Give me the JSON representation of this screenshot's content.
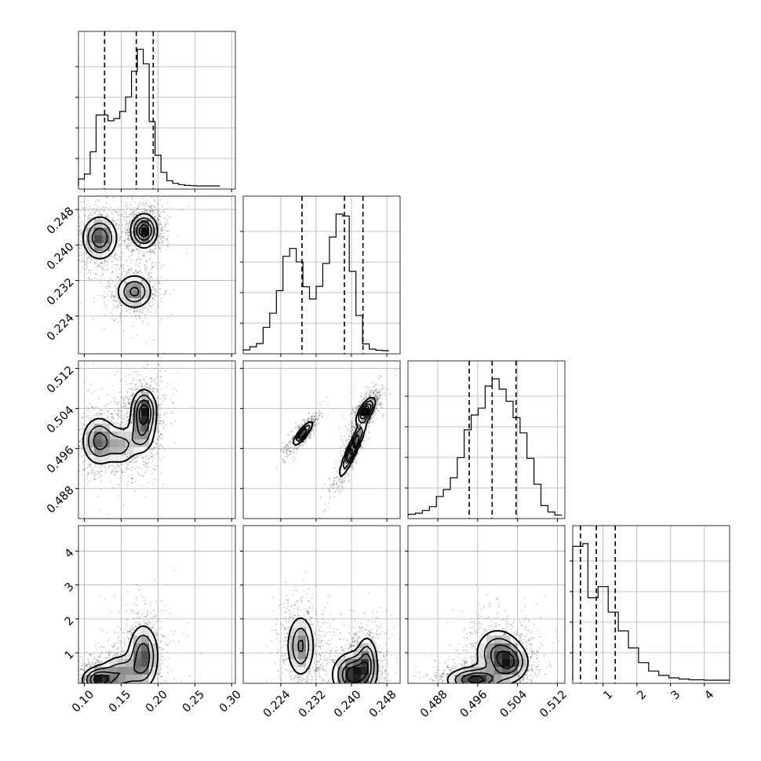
{
  "chart_data": {
    "type": "corner",
    "title": "",
    "params": [
      {
        "range": [
          0.092,
          0.305
        ],
        "ticks": [
          0.1,
          0.15,
          0.2,
          0.25,
          0.3
        ],
        "tick_labels": [
          "0.10",
          "0.15",
          "0.20",
          "0.25",
          "0.30"
        ],
        "quantiles": [
          0.1275,
          0.1705,
          0.1935
        ],
        "hist": {
          "bins": [
            0.092,
            0.1,
            0.108,
            0.116,
            0.124,
            0.132,
            0.14,
            0.148,
            0.156,
            0.164,
            0.172,
            0.18,
            0.188,
            0.196,
            0.204,
            0.212,
            0.22,
            0.228,
            0.236,
            0.244,
            0.252,
            0.26,
            0.268,
            0.276,
            0.284
          ],
          "counts": [
            1.6,
            2.7,
            7.8,
            16.2,
            16.2,
            14.9,
            15.4,
            17.0,
            20.3,
            26.2,
            31.2,
            27.9,
            14.7,
            7.0,
            3.1,
            1.2,
            0.6,
            0.3,
            0.1,
            0.05,
            0,
            0,
            0,
            0
          ]
        }
      },
      {
        "range": [
          0.2155,
          0.251
        ],
        "ticks": [
          0.224,
          0.232,
          0.24,
          0.248
        ],
        "tick_labels": [
          "0.224",
          "0.232",
          "0.240",
          "0.248"
        ],
        "quantiles": [
          0.2288,
          0.2384,
          0.2426
        ],
        "hist": {
          "bins": [
            0.2155,
            0.217,
            0.2185,
            0.22,
            0.2215,
            0.223,
            0.2245,
            0.226,
            0.2275,
            0.229,
            0.2305,
            0.232,
            0.2335,
            0.235,
            0.2365,
            0.238,
            0.2395,
            0.241,
            0.2425,
            0.244,
            0.2455,
            0.247,
            0.2485
          ],
          "counts": [
            0.2,
            1,
            1.8,
            5.9,
            9.5,
            15.2,
            23.9,
            25.9,
            22.5,
            16.2,
            13.1,
            16.3,
            22.1,
            28.8,
            34.6,
            34.1,
            20.1,
            8.9,
            1.7,
            0.4,
            0.1,
            0
          ]
        }
      },
      {
        "range": [
          0.482,
          0.5135
        ],
        "ticks": [
          0.488,
          0.496,
          0.504,
          0.512
        ],
        "tick_labels": [
          "0.488",
          "0.496",
          "0.504",
          "0.512"
        ],
        "quantiles": [
          0.4943,
          0.4989,
          0.5037
        ],
        "hist": {
          "bins": [
            0.4821,
            0.4835,
            0.4849,
            0.4863,
            0.4877,
            0.4891,
            0.4905,
            0.4919,
            0.4933,
            0.4947,
            0.4961,
            0.4975,
            0.4989,
            0.5003,
            0.5017,
            0.5031,
            0.5045,
            0.5059,
            0.5073,
            0.5087,
            0.5101,
            0.5115,
            0.5129
          ],
          "counts": [
            0.3,
            0.6,
            1.3,
            2.3,
            5.0,
            6.8,
            9.9,
            15.2,
            22.5,
            26.4,
            28.2,
            34.0,
            35.9,
            33.2,
            30.0,
            25.7,
            21.7,
            15.0,
            8.2,
            2.6,
            0.9,
            0.1
          ]
        }
      },
      {
        "range": [
          0.1,
          4.75
        ],
        "ticks": [
          1,
          2,
          3,
          4
        ],
        "tick_labels": [
          "1",
          "2",
          "3",
          "4"
        ],
        "quantiles": [
          0.33,
          0.8,
          1.36
        ],
        "hist": {
          "bins": [
            0.1,
            0.25,
            0.4,
            0.55,
            0.7,
            0.85,
            1.0,
            1.15,
            1.3,
            1.45,
            1.6,
            1.75,
            1.9,
            2.05,
            2.2,
            2.35,
            2.5,
            2.65,
            2.8,
            2.95,
            3.1,
            3.25,
            3.4,
            3.55,
            3.7,
            3.85,
            4.0,
            4.15,
            4.3,
            4.45,
            4.6,
            4.75
          ],
          "counts": [
            33.6,
            33.6,
            34.3,
            20.7,
            20.7,
            23.5,
            23.5,
            17.1,
            17.1,
            12.4,
            12.4,
            8.1,
            8.1,
            4.4,
            4.4,
            2.3,
            2.3,
            1.2,
            1.2,
            0.6,
            0.6,
            0.3,
            0.3,
            0.1,
            0.1,
            0.1,
            0,
            0,
            0,
            0,
            0
          ]
        }
      }
    ],
    "blobs": [
      {
        "pair": [
          0,
          1
        ],
        "cx": 0.121,
        "cy": 0.2416,
        "sx": 0.0125,
        "sy": 0.0026,
        "w": 1.0
      },
      {
        "pair": [
          0,
          1
        ],
        "cx": 0.181,
        "cy": 0.2432,
        "sx": 0.0095,
        "sy": 0.002,
        "w": 1.25
      },
      {
        "pair": [
          0,
          1
        ],
        "cx": 0.168,
        "cy": 0.2295,
        "sx": 0.013,
        "sy": 0.0021,
        "w": 0.8
      },
      {
        "pair": [
          0,
          2
        ],
        "cx": 0.12,
        "cy": 0.4975,
        "sx": 0.0125,
        "sy": 0.0026,
        "w": 1.0
      },
      {
        "pair": [
          0,
          2
        ],
        "cx": 0.15,
        "cy": 0.4965,
        "sx": 0.012,
        "sy": 0.0022,
        "w": 0.6
      },
      {
        "pair": [
          0,
          2
        ],
        "cx": 0.181,
        "cy": 0.5035,
        "sx": 0.009,
        "sy": 0.0023,
        "w": 1.3
      },
      {
        "pair": [
          0,
          2
        ],
        "cx": 0.178,
        "cy": 0.499,
        "sx": 0.01,
        "sy": 0.0024,
        "w": 0.7
      },
      {
        "pair": [
          1,
          2
        ],
        "cx": 0.229,
        "cy": 0.499,
        "sx": 0.0012,
        "sy": 0.0013,
        "rho": 0.85,
        "w": 0.9
      },
      {
        "pair": [
          1,
          2
        ],
        "cx": 0.2403,
        "cy": 0.496,
        "sx": 0.0016,
        "sy": 0.003,
        "rho": 0.92,
        "w": 1.0
      },
      {
        "pair": [
          1,
          2
        ],
        "cx": 0.2432,
        "cy": 0.5035,
        "sx": 0.0011,
        "sy": 0.0014,
        "rho": 0.7,
        "w": 1.1
      },
      {
        "pair": [
          0,
          3
        ],
        "cx": 0.12,
        "cy": 0.2,
        "sx": 0.012,
        "sy": 0.2,
        "w": 1.2
      },
      {
        "pair": [
          0,
          3
        ],
        "cx": 0.15,
        "cy": 0.4,
        "sx": 0.016,
        "sy": 0.3,
        "w": 0.7
      },
      {
        "pair": [
          0,
          3
        ],
        "cx": 0.18,
        "cy": 0.9,
        "sx": 0.011,
        "sy": 0.5,
        "w": 1.0
      },
      {
        "pair": [
          1,
          3
        ],
        "cx": 0.2285,
        "cy": 1.2,
        "sx": 0.0017,
        "sy": 0.5,
        "w": 0.7
      },
      {
        "pair": [
          1,
          3
        ],
        "cx": 0.2405,
        "cy": 0.35,
        "sx": 0.0025,
        "sy": 0.35,
        "w": 1.1
      },
      {
        "pair": [
          1,
          3
        ],
        "cx": 0.2435,
        "cy": 0.8,
        "sx": 0.0013,
        "sy": 0.4,
        "w": 0.6
      },
      {
        "pair": [
          2,
          3
        ],
        "cx": 0.4955,
        "cy": 0.2,
        "sx": 0.003,
        "sy": 0.2,
        "w": 1.2
      },
      {
        "pair": [
          2,
          3
        ],
        "cx": 0.5,
        "cy": 1.0,
        "sx": 0.0025,
        "sy": 0.4,
        "w": 0.8
      },
      {
        "pair": [
          2,
          3
        ],
        "cx": 0.5025,
        "cy": 0.7,
        "sx": 0.002,
        "sy": 0.3,
        "w": 0.9
      }
    ]
  }
}
